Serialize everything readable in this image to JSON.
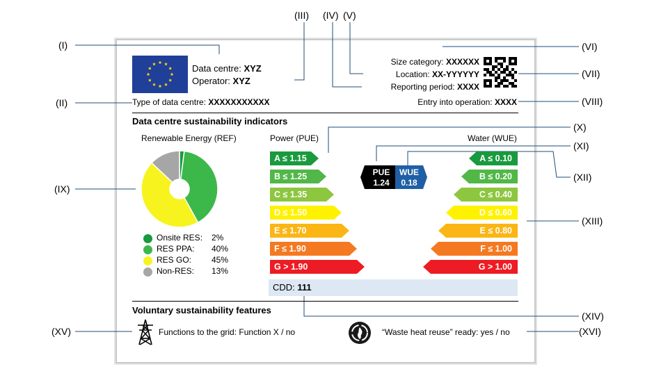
{
  "roman_labels": [
    "(I)",
    "(II)",
    "(III)",
    "(IV)",
    "(V)",
    "(VI)",
    "(VII)",
    "(VIII)",
    "(IX)",
    "(X)",
    "(XI)",
    "(XII)",
    "(XIII)",
    "(XIV)",
    "(XV)",
    "(XVI)"
  ],
  "header": {
    "data_centre_label": "Data centre:",
    "data_centre_value": "XYZ",
    "operator_label": "Operator:",
    "operator_value": "XYZ",
    "type_label": "Type of data centre:",
    "type_value": "XXXXXXXXXXX",
    "size_label": "Size category:",
    "size_value": "XXXXXX",
    "location_label": "Location:",
    "location_value": "XX-YYYYYY",
    "period_label": "Reporting period:",
    "period_value": "XXXX",
    "entry_label": "Entry into operation:",
    "entry_value": "XXXX"
  },
  "indicators": {
    "title": "Data centre sustainability indicators",
    "renewable_title": "Renewable Energy (REF)",
    "power_title": "Power (PUE)",
    "water_title": "Water (WUE)"
  },
  "chart_data": {
    "type": "pie",
    "title": "Renewable Energy (REF)",
    "categories": [
      "Onsite RES:",
      "RES PPA:",
      "RES GO:",
      "Non-RES:"
    ],
    "values": [
      2,
      40,
      45,
      13
    ],
    "value_labels": [
      "2%",
      "40%",
      "45%",
      "13%"
    ],
    "colors": [
      "#1a9a3e",
      "#3cb84a",
      "#f7f31f",
      "#a6a6a6"
    ],
    "donut": true
  },
  "pue_scale": [
    "A ≤ 1.15",
    "B ≤ 1.25",
    "C ≤ 1.35",
    "D ≤ 1.50",
    "E ≤ 1.70",
    "F ≤ 1.90",
    "G > 1.90"
  ],
  "wue_scale": [
    "A ≤ 0.10",
    "B ≤ 0.20",
    "C ≤ 0.40",
    "D ≤ 0.60",
    "E ≤ 0.80",
    "F ≤ 1.00",
    "G > 1.00"
  ],
  "scale_colors": [
    "#1a9a3e",
    "#52b748",
    "#8dc63f",
    "#fff200",
    "#fbb615",
    "#f47920",
    "#ed1c24"
  ],
  "pue_badge": {
    "label": "PUE",
    "value": "1.24"
  },
  "wue_badge": {
    "label": "WUE",
    "value": "0.18"
  },
  "cdd": {
    "label": "CDD:",
    "value": "111"
  },
  "voluntary": {
    "title": "Voluntary sustainability features",
    "grid_text": "Functions to the grid: Function X / no",
    "heat_text": "“Waste heat reuse” ready: yes / no"
  },
  "icons": [
    "eu-flag-icon",
    "qr-code-icon",
    "pylon-icon",
    "heat-reuse-icon"
  ],
  "colors": {
    "pue_badge": "#000000",
    "wue_badge": "#1f5fa6",
    "card_border": "#c9c9c9",
    "cdd_bg": "#dde8f4"
  }
}
